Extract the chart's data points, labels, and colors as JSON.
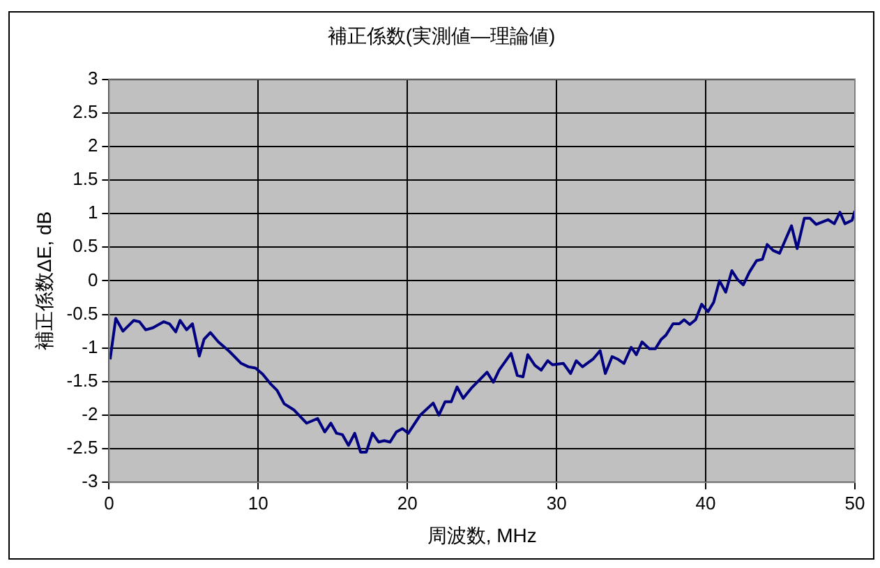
{
  "chart_data": {
    "type": "line",
    "title": "補正係数(実測値—理論値)",
    "xlabel": "周波数, MHz",
    "ylabel": "補正係数ΔE, dB",
    "xlim": [
      0,
      50
    ],
    "xticks": [
      0,
      10,
      20,
      30,
      40,
      50
    ],
    "ylim": [
      -3,
      3
    ],
    "yticks": [
      -3,
      -2.5,
      -2,
      -1.5,
      -1,
      -0.5,
      0,
      0.5,
      1,
      1.5,
      2,
      2.5,
      3
    ],
    "grid": true,
    "legend": false,
    "marker": "none",
    "line_style": "solid",
    "series": [
      {
        "color": "#000080",
        "x": [
          0.07,
          0.45,
          0.93,
          1.66,
          2.04,
          2.46,
          2.94,
          3.67,
          4.05,
          4.47,
          4.76,
          5.2,
          5.59,
          6.05,
          6.37,
          6.79,
          7.33,
          8.06,
          8.86,
          9.34,
          9.82,
          10.3,
          10.85,
          11.26,
          11.74,
          12.38,
          13.24,
          13.98,
          14.46,
          14.87,
          15.25,
          15.64,
          16.05,
          16.47,
          16.86,
          17.24,
          17.66,
          18.07,
          18.45,
          18.84,
          19.26,
          19.67,
          20.06,
          20.86,
          21.73,
          22.11,
          22.53,
          22.94,
          23.33,
          23.74,
          24.28,
          24.86,
          25.34,
          25.76,
          26.15,
          26.95,
          27.37,
          27.75,
          28.07,
          28.55,
          28.97,
          29.41,
          29.73,
          30.46,
          30.94,
          31.32,
          31.74,
          32.47,
          32.92,
          33.27,
          33.72,
          34.13,
          34.52,
          35.0,
          35.35,
          35.73,
          36.21,
          36.63,
          37.02,
          37.33,
          37.81,
          38.23,
          38.55,
          38.93,
          39.32,
          39.73,
          40.15,
          40.53,
          40.92,
          41.34,
          41.75,
          42.13,
          42.52,
          42.93,
          43.41,
          43.8,
          44.12,
          44.53,
          44.95,
          45.75,
          46.13,
          46.61,
          46.99,
          47.4,
          48.2,
          48.62,
          49.0,
          49.33,
          49.81,
          50.0
        ],
        "values": [
          -1.17,
          -0.56,
          -0.75,
          -0.59,
          -0.61,
          -0.73,
          -0.7,
          -0.61,
          -0.64,
          -0.76,
          -0.59,
          -0.73,
          -0.64,
          -1.12,
          -0.87,
          -0.77,
          -0.91,
          -1.05,
          -1.23,
          -1.28,
          -1.3,
          -1.39,
          -1.54,
          -1.63,
          -1.83,
          -1.92,
          -2.12,
          -2.05,
          -2.25,
          -2.12,
          -2.27,
          -2.29,
          -2.45,
          -2.27,
          -2.55,
          -2.55,
          -2.27,
          -2.4,
          -2.38,
          -2.4,
          -2.25,
          -2.2,
          -2.27,
          -2.0,
          -1.82,
          -2.0,
          -1.8,
          -1.8,
          -1.58,
          -1.75,
          -1.6,
          -1.47,
          -1.36,
          -1.51,
          -1.33,
          -1.08,
          -1.41,
          -1.43,
          -1.1,
          -1.26,
          -1.33,
          -1.19,
          -1.25,
          -1.23,
          -1.38,
          -1.19,
          -1.28,
          -1.16,
          -1.04,
          -1.38,
          -1.13,
          -1.17,
          -1.23,
          -0.99,
          -1.1,
          -0.91,
          -1.01,
          -1.01,
          -0.87,
          -0.81,
          -0.64,
          -0.64,
          -0.58,
          -0.65,
          -0.58,
          -0.35,
          -0.46,
          -0.32,
          0.0,
          -0.17,
          0.15,
          0.02,
          -0.06,
          0.13,
          0.3,
          0.32,
          0.54,
          0.45,
          0.41,
          0.82,
          0.48,
          0.93,
          0.93,
          0.84,
          0.91,
          0.85,
          1.02,
          0.85,
          0.9,
          1.04
        ]
      }
    ]
  }
}
